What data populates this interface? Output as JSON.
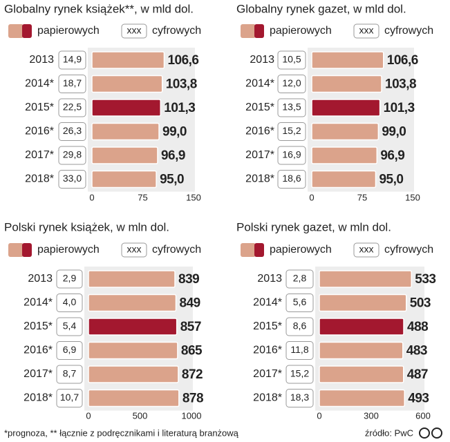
{
  "chart_data": [
    {
      "type": "bar",
      "orientation": "horizontal",
      "title": "Globalny rynek książek**, w mld dol.",
      "legend_sample": "xxx",
      "categories": [
        "2013",
        "2014*",
        "2015*",
        "2016*",
        "2017*",
        "2018*"
      ],
      "highlight_category": "2015*",
      "highlight_color": "#a3182f",
      "series": [
        {
          "name": "papierowych",
          "color": "#dba38b",
          "values": [
            106.6,
            103.8,
            101.3,
            99.0,
            96.9,
            95.0
          ],
          "value_labels": [
            "106,6",
            "103,8",
            "101,3",
            "99,0",
            "96,9",
            "95,0"
          ]
        },
        {
          "name": "cyfrowych",
          "values": [
            14.9,
            18.7,
            22.5,
            26.3,
            29.8,
            33.0
          ],
          "value_labels": [
            "14,9",
            "18,7",
            "22,5",
            "26,3",
            "29,8",
            "33,0"
          ]
        }
      ],
      "xlim": [
        0,
        150
      ],
      "xticks": [
        0,
        75,
        150
      ]
    },
    {
      "type": "bar",
      "orientation": "horizontal",
      "title": "Globalny rynek gazet, w mld dol.",
      "legend_sample": "xxx",
      "categories": [
        "2013",
        "2014*",
        "2015*",
        "2016*",
        "2017*",
        "2018*"
      ],
      "highlight_category": "2015*",
      "highlight_color": "#a3182f",
      "series": [
        {
          "name": "papierowych",
          "color": "#dba38b",
          "values": [
            106.6,
            103.8,
            101.3,
            99.0,
            96.9,
            95.0
          ],
          "value_labels": [
            "106,6",
            "103,8",
            "101,3",
            "99,0",
            "96,9",
            "95,0"
          ]
        },
        {
          "name": "cyfrowych",
          "values": [
            10.5,
            12.0,
            13.5,
            15.2,
            16.9,
            18.6
          ],
          "value_labels": [
            "10,5",
            "12,0",
            "13,5",
            "15,2",
            "16,9",
            "18,6"
          ]
        }
      ],
      "xlim": [
        0,
        150
      ],
      "xticks": [
        0,
        75,
        150
      ]
    },
    {
      "type": "bar",
      "orientation": "horizontal",
      "title": "Polski rynek książek, w mln dol.",
      "legend_sample": "xxx",
      "categories": [
        "2013",
        "2014*",
        "2015*",
        "2016*",
        "2017*",
        "2018*"
      ],
      "highlight_category": "2015*",
      "highlight_color": "#a3182f",
      "series": [
        {
          "name": "papierowych",
          "color": "#dba38b",
          "values": [
            839,
            849,
            857,
            865,
            872,
            878
          ]
        },
        {
          "name": "cyfrowych",
          "values": [
            2.9,
            4.0,
            5.4,
            6.9,
            8.7,
            10.7
          ],
          "value_labels": [
            "2,9",
            "4,0",
            "5,4",
            "6,9",
            "8,7",
            "10,7"
          ]
        }
      ],
      "xlim": [
        0,
        1000
      ],
      "xticks": [
        0,
        500,
        1000
      ]
    },
    {
      "type": "bar",
      "orientation": "horizontal",
      "title": "Polski rynek gazet, w mln dol.",
      "legend_sample": "xxx",
      "categories": [
        "2013",
        "2014*",
        "2015*",
        "2016*",
        "2017*",
        "2018*"
      ],
      "highlight_category": "2015*",
      "highlight_color": "#a3182f",
      "series": [
        {
          "name": "papierowych",
          "color": "#dba38b",
          "values": [
            533,
            503,
            488,
            483,
            487,
            493
          ]
        },
        {
          "name": "cyfrowych",
          "values": [
            2.8,
            5.6,
            8.6,
            11.8,
            15.2,
            18.3
          ],
          "value_labels": [
            "2,8",
            "5,6",
            "8,6",
            "11,8",
            "15,2",
            "18,3"
          ]
        }
      ],
      "xlim": [
        0,
        600
      ],
      "xticks": [
        0,
        300,
        600
      ]
    }
  ],
  "note": "*prognoza, ** łącznie z podręcznikami i literaturą branżową",
  "source": "źródło: PwC"
}
